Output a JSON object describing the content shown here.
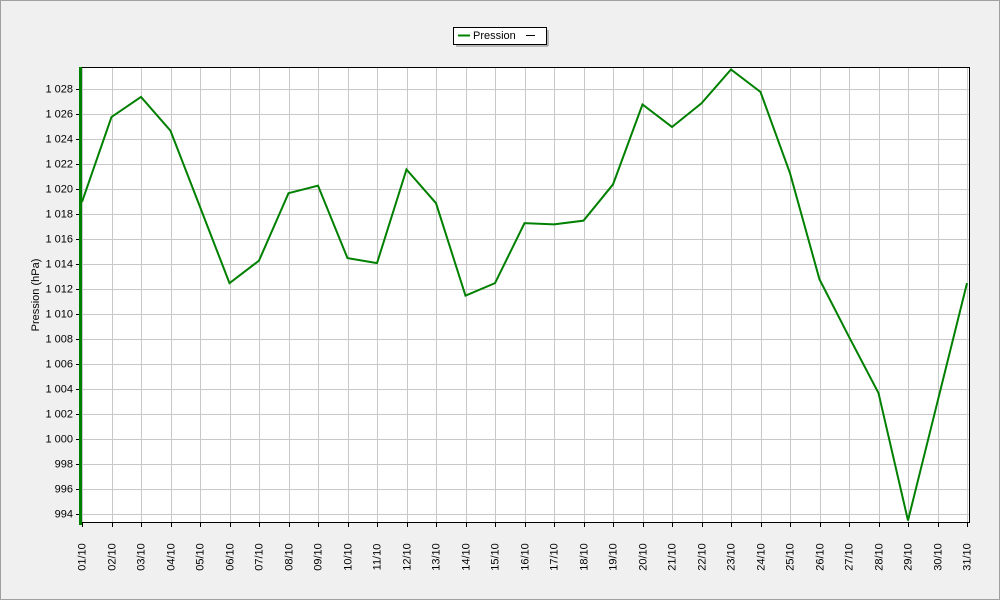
{
  "chart_data": {
    "type": "line",
    "ylabel": "Pression (hPa)",
    "categories": [
      "01/10",
      "02/10",
      "03/10",
      "04/10",
      "05/10",
      "06/10",
      "07/10",
      "08/10",
      "09/10",
      "10/10",
      "11/10",
      "12/10",
      "13/10",
      "14/10",
      "15/10",
      "16/10",
      "17/10",
      "18/10",
      "19/10",
      "20/10",
      "21/10",
      "22/10",
      "23/10",
      "24/10",
      "25/10",
      "26/10",
      "27/10",
      "28/10",
      "29/10",
      "30/10",
      "31/10"
    ],
    "series": [
      {
        "name": "Pression",
        "color": "#008000",
        "values": [
          1019.0,
          1025.8,
          1027.4,
          1024.7,
          1018.6,
          1012.5,
          1014.3,
          1019.7,
          1020.3,
          1014.5,
          1014.1,
          1021.6,
          1018.9,
          1011.5,
          1012.5,
          1017.3,
          1017.2,
          1017.5,
          1020.4,
          1026.8,
          1025.0,
          1026.9,
          1029.6,
          1027.8,
          1021.3,
          1012.8,
          1008.2,
          1003.7,
          993.5,
          1003.0,
          1012.5
        ]
      }
    ],
    "ylim": [
      993.3,
      1029.8
    ],
    "yticks": [
      994,
      996,
      998,
      {
        "value": 1000,
        "label": "1 000"
      },
      {
        "value": 1002,
        "label": "1 002"
      },
      {
        "value": 1004,
        "label": "1 004"
      },
      {
        "value": 1006,
        "label": "1 006"
      },
      {
        "value": 1008,
        "label": "1 008"
      },
      {
        "value": 1010,
        "label": "1 010"
      },
      {
        "value": 1012,
        "label": "1 012"
      },
      {
        "value": 1014,
        "label": "1 014"
      },
      {
        "value": 1016,
        "label": "1 016"
      },
      {
        "value": 1018,
        "label": "1 018"
      },
      {
        "value": 1020,
        "label": "1 020"
      },
      {
        "value": 1022,
        "label": "1 022"
      },
      {
        "value": 1024,
        "label": "1 024"
      },
      {
        "value": 1026,
        "label": "1 026"
      },
      {
        "value": 1028,
        "label": "1 028"
      }
    ],
    "grid": true,
    "legend": "upper center"
  }
}
